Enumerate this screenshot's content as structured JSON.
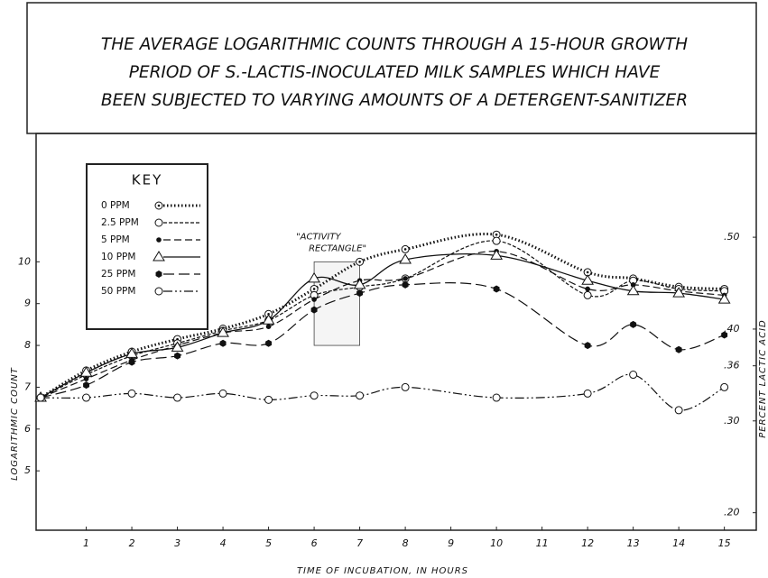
{
  "chart_data": {
    "type": "line",
    "title": [
      "THE AVERAGE LOGARITHMIC COUNTS THROUGH A 15-HOUR GROWTH",
      "PERIOD OF S.-LACTIS-INOCULATED MILK SAMPLES WHICH HAVE",
      "BEEN SUBJECTED TO VARYING AMOUNTS OF A DETERGENT-SANITIZER"
    ],
    "x_label": "TIME OF INCUBATION, IN HOURS",
    "y_label": "LOGARITHMIC COUNT",
    "y2_label": "PERCENT LACTIC ACID",
    "legend_title": "KEY",
    "legend": "upper left",
    "x": [
      0,
      1,
      2,
      3,
      4,
      5,
      6,
      7,
      8,
      10,
      12,
      13,
      14,
      15
    ],
    "xlim": [
      -0.1,
      15.7
    ],
    "xticks": [
      1,
      2,
      3,
      4,
      5,
      6,
      7,
      8,
      9,
      10,
      11,
      12,
      13,
      14,
      15
    ],
    "ylim": [
      3.58,
      13.07
    ],
    "yticks": [
      5,
      6,
      7,
      8,
      9,
      10
    ],
    "y2lim": [
      0.181,
      0.613
    ],
    "y2ticks": [
      {
        "value": 0.2,
        "label": ".20"
      },
      {
        "value": 0.3,
        "label": ".30"
      },
      {
        "value": 0.36,
        "label": ".36"
      },
      {
        "value": 0.4,
        "label": ".40"
      },
      {
        "value": 0.5,
        "label": ".50"
      }
    ],
    "series": [
      {
        "name": "0 PPM",
        "color": "#111",
        "marker": "dotcircle",
        "dash": "1.5,2.5",
        "width": 3,
        "values": [
          6.75,
          7.4,
          7.85,
          8.15,
          8.4,
          8.75,
          9.35,
          10.0,
          10.3,
          10.65,
          9.75,
          9.6,
          9.4,
          9.35
        ]
      },
      {
        "name": "2.5 PPM",
        "color": "#111",
        "marker": "circle",
        "dash": "4,2",
        "width": 1.2,
        "values": [
          6.75,
          7.3,
          7.75,
          8.05,
          8.35,
          8.6,
          9.2,
          9.4,
          9.6,
          10.5,
          9.2,
          9.55,
          9.35,
          9.3
        ]
      },
      {
        "name": "5 PPM",
        "color": "#111",
        "marker": "dot",
        "dash": "8,4",
        "width": 1.2,
        "values": [
          6.75,
          7.2,
          7.65,
          8.0,
          8.3,
          8.45,
          9.1,
          9.55,
          9.6,
          10.25,
          9.35,
          9.45,
          9.3,
          9.2
        ]
      },
      {
        "name": "10 PPM",
        "color": "#111",
        "marker": "triangle",
        "dash": "none",
        "width": 1.3,
        "values": [
          6.75,
          7.35,
          7.8,
          7.95,
          8.3,
          8.6,
          9.6,
          9.45,
          10.05,
          10.15,
          9.55,
          9.3,
          9.25,
          9.1
        ]
      },
      {
        "name": "25 PPM",
        "color": "#111",
        "marker": "hex",
        "dash": "12,5",
        "width": 1.2,
        "values": [
          6.75,
          7.05,
          7.6,
          7.75,
          8.05,
          8.05,
          8.85,
          9.25,
          9.45,
          9.35,
          8.0,
          8.5,
          7.9,
          8.25
        ]
      },
      {
        "name": "50 PPM",
        "color": "#111",
        "marker": "circle",
        "dash": "10,3,2,3,2,3",
        "width": 1.2,
        "values": [
          6.75,
          6.75,
          6.85,
          6.75,
          6.85,
          6.7,
          6.8,
          6.8,
          7.0,
          6.75,
          6.85,
          7.3,
          6.45,
          7.0
        ]
      }
    ],
    "annotation": {
      "text": [
        "\"ACTIVITY",
        "RECTANGLE\""
      ],
      "x": [
        6,
        7
      ],
      "y": [
        8,
        10
      ]
    }
  }
}
